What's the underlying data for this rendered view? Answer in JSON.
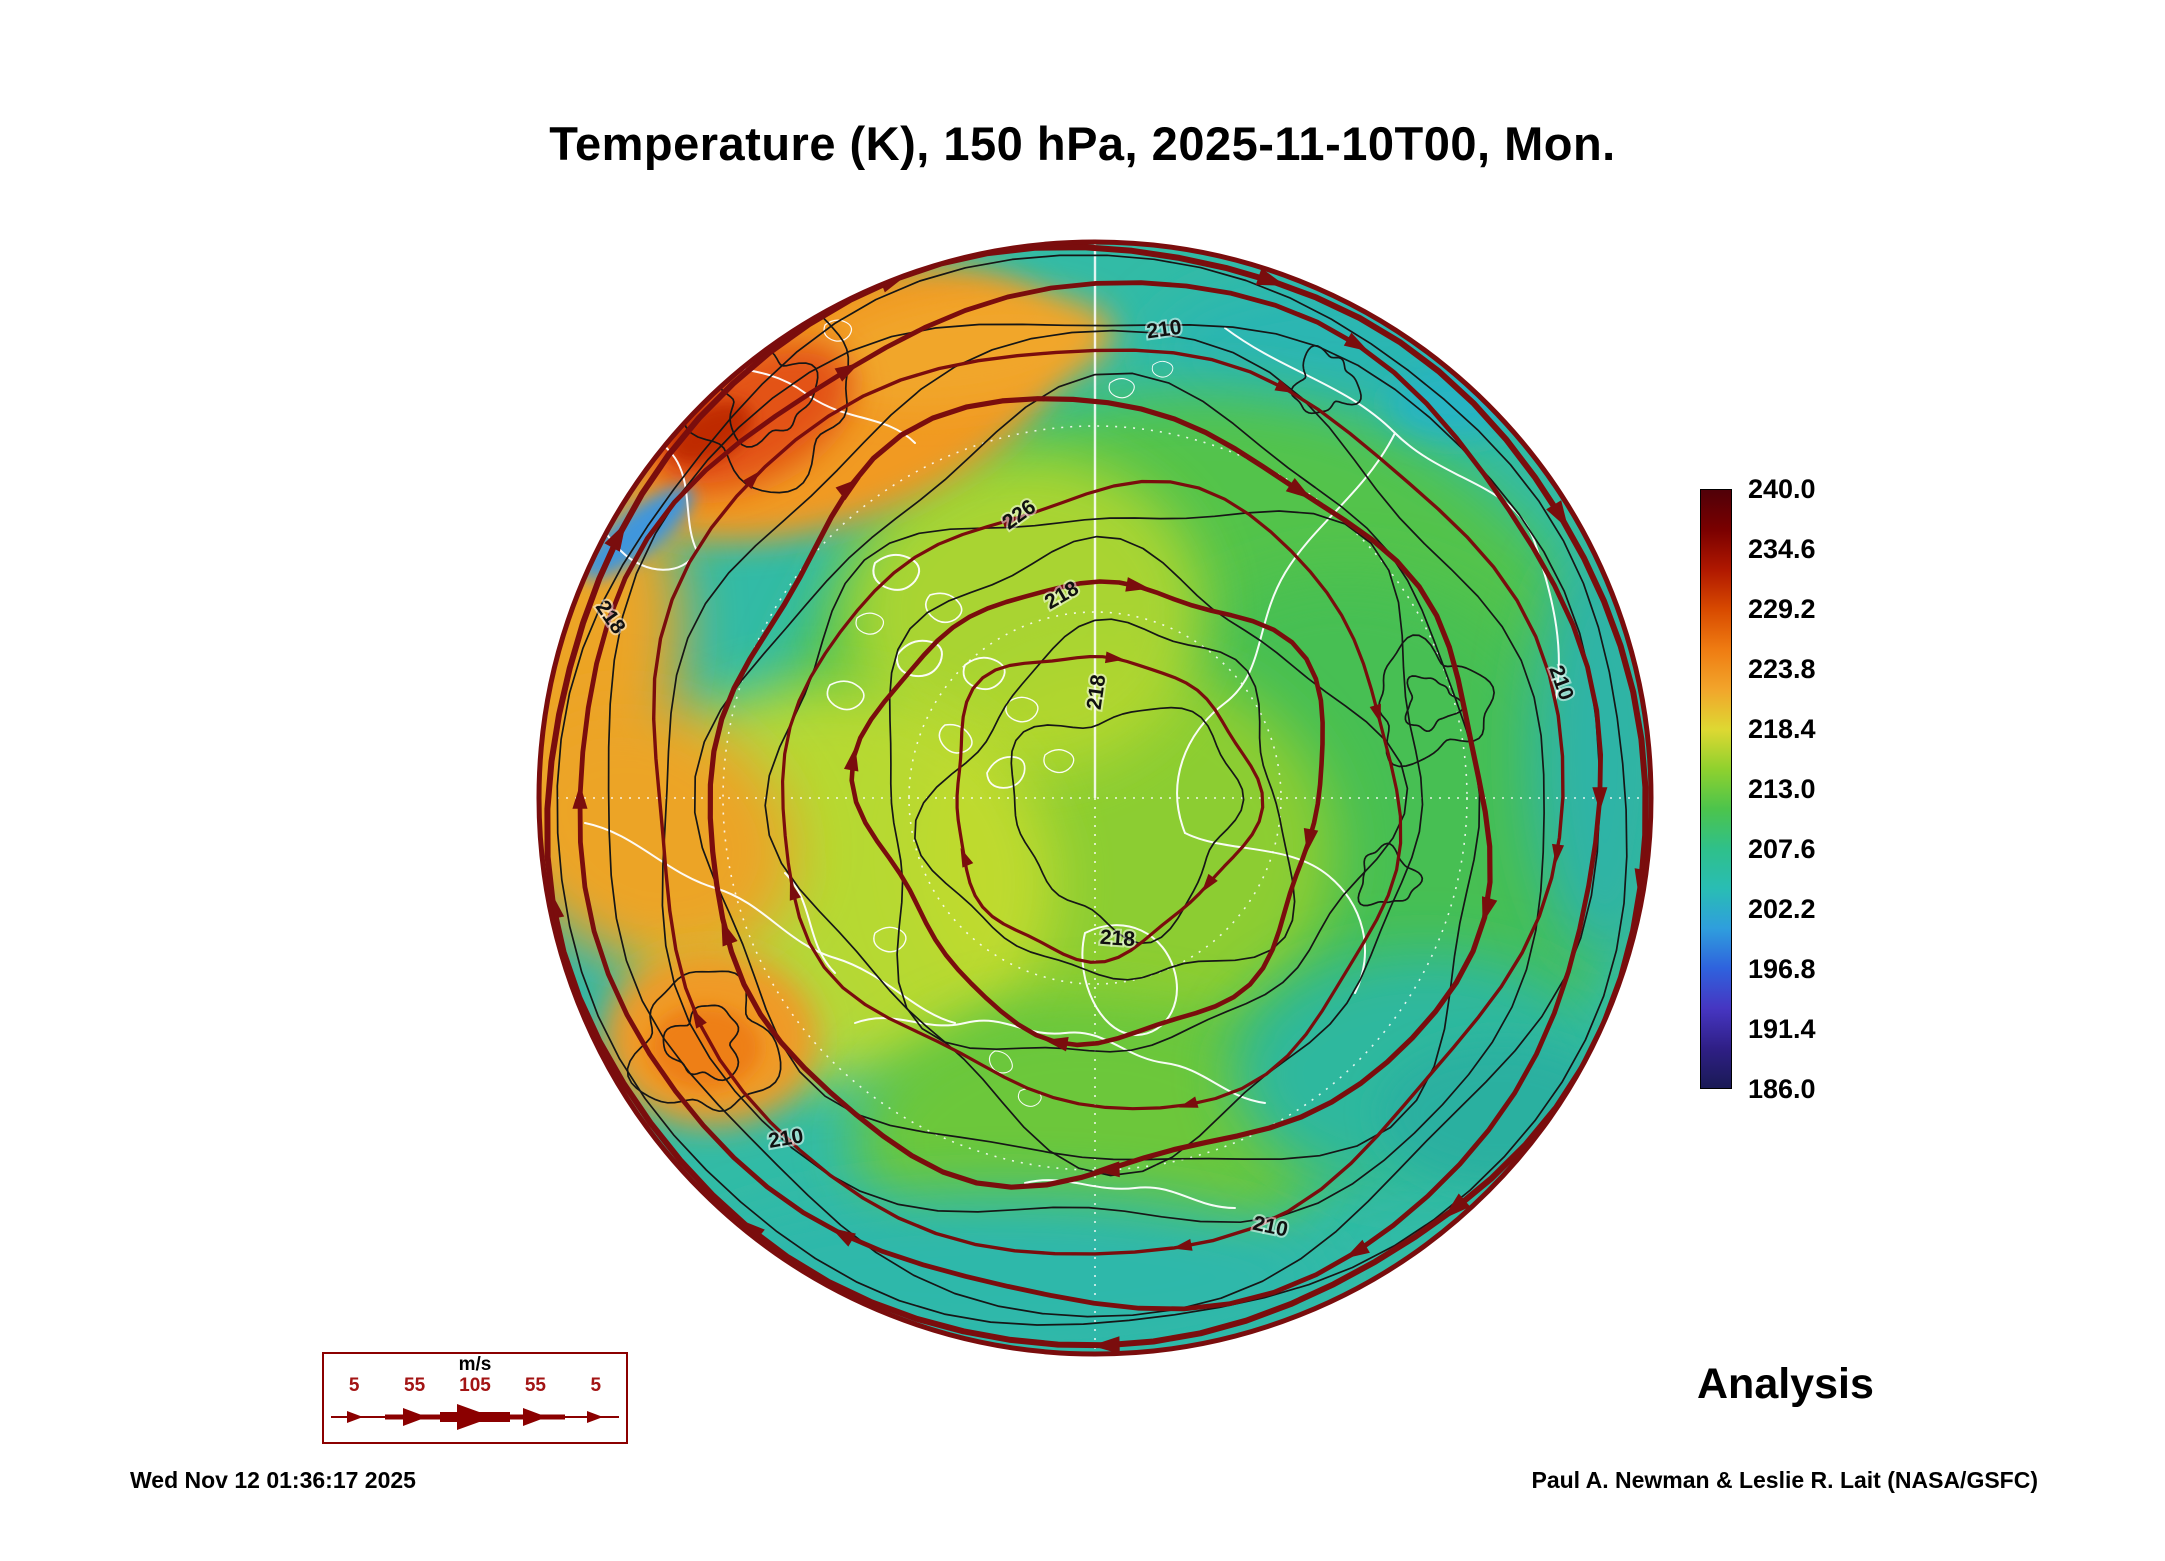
{
  "title": "Temperature (K), 150 hPa, 2025-11-10T00, Mon.",
  "analysis_label": "Analysis",
  "footer": {
    "timestamp": "Wed Nov 12 01:36:17 2025",
    "credit": "Paul A. Newman & Leslie R. Lait (NASA/GSFC)"
  },
  "colorbar": {
    "labels": [
      "240.0",
      "234.6",
      "229.2",
      "223.8",
      "218.4",
      "213.0",
      "207.6",
      "202.2",
      "196.8",
      "191.4",
      "186.0"
    ],
    "stops": [
      "#500008",
      "#7a0000",
      "#b01800",
      "#d84a00",
      "#ef7c12",
      "#f2a52b",
      "#ded832",
      "#8fd12e",
      "#4cc44c",
      "#2fc08a",
      "#29bdb4",
      "#2f9edd",
      "#2f62dd",
      "#4636c2",
      "#2f1f86",
      "#1a1a55"
    ]
  },
  "wind_legend": {
    "unit": "m/s",
    "values": [
      "5",
      "55",
      "105",
      "55",
      "5"
    ]
  },
  "map": {
    "contour_labels": [
      {
        "text": "210"
      },
      {
        "text": "226"
      },
      {
        "text": "218"
      },
      {
        "text": "218"
      },
      {
        "text": "218"
      },
      {
        "text": "210"
      },
      {
        "text": "210"
      },
      {
        "text": "210"
      },
      {
        "text": "218"
      }
    ]
  },
  "colors": {
    "streamline": "#7a0d0d",
    "contour": "#161616",
    "coastline": "#ffffff",
    "legend_accent": "#8b0000",
    "base_field": "#32bba6"
  }
}
